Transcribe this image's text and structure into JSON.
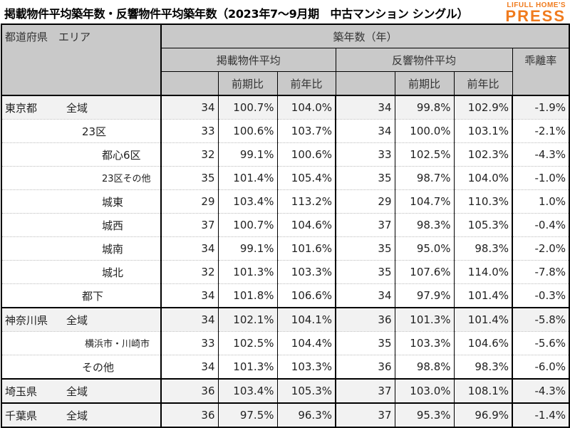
{
  "title": "掲載物件平均築年数・反響物件平均築年数（2023年7～9月期　中古マンション シングル）",
  "logo": {
    "line1": "LIFULL HOME'S",
    "line2": "PRESS"
  },
  "header": {
    "corner": "都道府県　エリア",
    "top": "築年数（年）",
    "listed": "掲載物件平均",
    "response": "反響物件平均",
    "divergence": "乖離率",
    "qoq": "前期比",
    "yoy": "前年比"
  },
  "rows": [
    {
      "pref": "東京都",
      "area": "全域",
      "indent": 0,
      "group": true,
      "shaded": true,
      "v": [
        "34",
        "100.7%",
        "104.0%",
        "34",
        "99.8%",
        "102.9%",
        "-1.9%"
      ]
    },
    {
      "pref": "",
      "area": "23区",
      "indent": 1,
      "v": [
        "33",
        "100.6%",
        "103.7%",
        "34",
        "100.0%",
        "103.1%",
        "-2.1%"
      ]
    },
    {
      "pref": "",
      "area": "都心6区",
      "indent": 2,
      "v": [
        "32",
        "99.1%",
        "100.6%",
        "33",
        "102.5%",
        "102.3%",
        "-4.3%"
      ]
    },
    {
      "pref": "",
      "area": "23区その他",
      "indent": 2,
      "v": [
        "35",
        "101.4%",
        "105.4%",
        "35",
        "98.7%",
        "104.0%",
        "-1.0%"
      ]
    },
    {
      "pref": "",
      "area": "城東",
      "indent": 2,
      "v": [
        "29",
        "103.4%",
        "113.2%",
        "29",
        "104.7%",
        "110.3%",
        "1.0%"
      ]
    },
    {
      "pref": "",
      "area": "城西",
      "indent": 2,
      "v": [
        "37",
        "100.7%",
        "104.6%",
        "37",
        "98.3%",
        "105.3%",
        "-0.4%"
      ]
    },
    {
      "pref": "",
      "area": "城南",
      "indent": 2,
      "v": [
        "34",
        "99.1%",
        "101.6%",
        "35",
        "95.0%",
        "98.3%",
        "-2.0%"
      ]
    },
    {
      "pref": "",
      "area": "城北",
      "indent": 2,
      "v": [
        "32",
        "101.3%",
        "103.3%",
        "35",
        "107.6%",
        "114.0%",
        "-7.8%"
      ]
    },
    {
      "pref": "",
      "area": "都下",
      "indent": 1,
      "v": [
        "34",
        "101.8%",
        "106.6%",
        "34",
        "97.9%",
        "101.4%",
        "-0.3%"
      ]
    },
    {
      "pref": "神奈川県",
      "area": "全域",
      "indent": 0,
      "group": true,
      "shaded": true,
      "v": [
        "34",
        "102.1%",
        "104.1%",
        "36",
        "101.3%",
        "101.4%",
        "-5.8%"
      ]
    },
    {
      "pref": "",
      "area": "横浜市・川崎市",
      "indent": 3,
      "v": [
        "33",
        "102.5%",
        "104.4%",
        "35",
        "103.3%",
        "104.6%",
        "-5.6%"
      ]
    },
    {
      "pref": "",
      "area": "その他",
      "indent": 1,
      "v": [
        "34",
        "101.3%",
        "103.3%",
        "36",
        "98.8%",
        "98.3%",
        "-6.0%"
      ]
    },
    {
      "pref": "埼玉県",
      "area": "全域",
      "indent": 0,
      "group": true,
      "shaded": true,
      "v": [
        "36",
        "103.4%",
        "105.3%",
        "37",
        "103.0%",
        "108.1%",
        "-4.3%"
      ]
    },
    {
      "pref": "千葉県",
      "area": "全域",
      "indent": 0,
      "group": true,
      "shaded": true,
      "v": [
        "36",
        "97.5%",
        "96.3%",
        "37",
        "95.3%",
        "96.9%",
        "-1.4%"
      ]
    }
  ]
}
